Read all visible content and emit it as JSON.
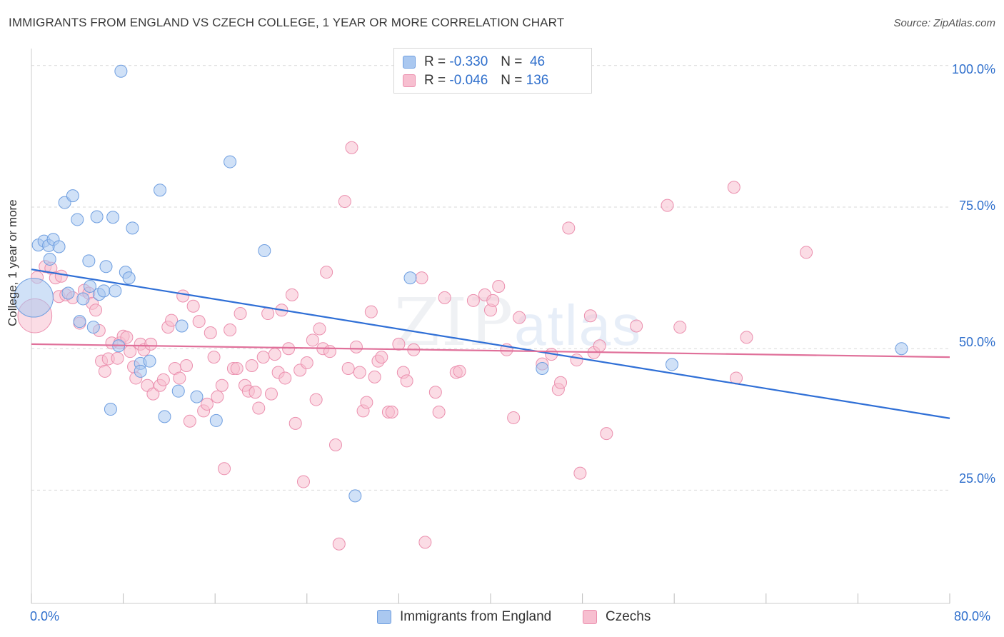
{
  "title": "IMMIGRANTS FROM ENGLAND VS CZECH COLLEGE, 1 YEAR OR MORE CORRELATION CHART",
  "source": "Source: ZipAtlas.com",
  "watermark": {
    "zip": "ZIP",
    "atlas": "atlas"
  },
  "colors": {
    "england_fill": "#aac8f0",
    "england_stroke": "#6e9ee0",
    "england_line": "#2f6fd6",
    "czech_fill": "#f7bfd0",
    "czech_stroke": "#eb8fae",
    "czech_line": "#e0709a",
    "grid": "#d9d9d9",
    "tick_text": "#2f6fcc"
  },
  "legend_stats": [
    {
      "r_label": "R =",
      "r": "-0.330",
      "n_label": "N =",
      "n": "46"
    },
    {
      "r_label": "R =",
      "r": "-0.046",
      "n_label": "N =",
      "n": "136"
    }
  ],
  "legend": {
    "england": "Immigrants from England",
    "czechs": "Czechs"
  },
  "chart_data": {
    "type": "scatter",
    "title": "IMMIGRANTS FROM ENGLAND VS CZECH COLLEGE, 1 YEAR OR MORE CORRELATION CHART",
    "xlabel": "",
    "ylabel": "College, 1 year or more",
    "xlim": [
      0,
      80
    ],
    "ylim": [
      5,
      103
    ],
    "x_tick_labels": [
      "0.0%",
      "80.0%"
    ],
    "y_ticks": [
      25,
      50,
      75,
      100
    ],
    "y_tick_labels": [
      "25.0%",
      "50.0%",
      "75.0%",
      "100.0%"
    ],
    "grid": true,
    "legend_position": "bottom",
    "series": [
      {
        "name": "Immigrants from England",
        "trend": {
          "x": [
            0,
            80
          ],
          "y": [
            64.0,
            37.7
          ]
        },
        "points": [
          [
            0.2,
            59.0,
            3.2
          ],
          [
            0.6,
            68.3,
            1
          ],
          [
            1.1,
            69.0,
            1
          ],
          [
            1.5,
            68.2,
            1
          ],
          [
            1.9,
            69.3,
            1
          ],
          [
            2.4,
            68.0,
            1
          ],
          [
            1.6,
            65.8,
            1
          ],
          [
            3.2,
            59.8,
            1
          ],
          [
            2.9,
            75.8,
            1
          ],
          [
            3.6,
            77.0,
            1
          ],
          [
            4.0,
            72.8,
            1
          ],
          [
            4.2,
            54.8,
            1
          ],
          [
            4.5,
            58.8,
            1
          ],
          [
            5.0,
            65.5,
            1
          ],
          [
            5.1,
            61.0,
            1
          ],
          [
            5.4,
            53.8,
            1
          ],
          [
            5.7,
            73.3,
            1
          ],
          [
            5.9,
            59.6,
            1
          ],
          [
            6.3,
            60.2,
            1
          ],
          [
            6.5,
            64.5,
            1
          ],
          [
            6.9,
            39.3,
            1
          ],
          [
            7.1,
            73.2,
            1
          ],
          [
            7.3,
            60.2,
            1
          ],
          [
            7.6,
            50.5,
            1
          ],
          [
            7.8,
            99.0,
            1
          ],
          [
            8.2,
            63.5,
            1
          ],
          [
            8.5,
            62.5,
            1
          ],
          [
            8.8,
            71.3,
            1
          ],
          [
            9.5,
            47.4,
            1
          ],
          [
            9.5,
            46.0,
            1
          ],
          [
            10.3,
            47.8,
            1
          ],
          [
            11.2,
            78.0,
            1
          ],
          [
            11.6,
            38.0,
            1
          ],
          [
            13.1,
            54.0,
            1
          ],
          [
            12.8,
            42.5,
            1
          ],
          [
            14.4,
            41.5,
            1
          ],
          [
            16.1,
            37.3,
            1
          ],
          [
            17.3,
            83.0,
            1
          ],
          [
            20.3,
            67.3,
            1
          ],
          [
            33.0,
            62.5,
            1
          ],
          [
            28.2,
            24.0,
            1
          ],
          [
            44.5,
            46.5,
            1
          ],
          [
            55.8,
            47.2,
            1
          ],
          [
            75.8,
            50.0,
            1
          ]
        ]
      },
      {
        "name": "Czechs",
        "trend": {
          "x": [
            0,
            80
          ],
          "y": [
            50.8,
            48.5
          ]
        },
        "points": [
          [
            0.3,
            55.8,
            2.8
          ],
          [
            0.5,
            62.6,
            1
          ],
          [
            1.2,
            64.5,
            1
          ],
          [
            1.7,
            64.2,
            1
          ],
          [
            2.1,
            62.5,
            1
          ],
          [
            2.6,
            62.8,
            1
          ],
          [
            2.4,
            59.2,
            1
          ],
          [
            3.0,
            59.5,
            1
          ],
          [
            3.6,
            59.0,
            1
          ],
          [
            4.2,
            54.5,
            1
          ],
          [
            4.6,
            60.3,
            1
          ],
          [
            5.0,
            59.8,
            1
          ],
          [
            5.3,
            58.0,
            1
          ],
          [
            5.6,
            56.8,
            1
          ],
          [
            5.9,
            53.2,
            1
          ],
          [
            6.1,
            47.8,
            1
          ],
          [
            6.4,
            46.0,
            1
          ],
          [
            6.7,
            48.2,
            1
          ],
          [
            7.0,
            51.0,
            1
          ],
          [
            7.5,
            48.3,
            1
          ],
          [
            7.7,
            51.0,
            1
          ],
          [
            8.0,
            52.2,
            1
          ],
          [
            8.3,
            52.0,
            1
          ],
          [
            8.6,
            49.5,
            1
          ],
          [
            8.9,
            46.8,
            1
          ],
          [
            9.1,
            44.8,
            1
          ],
          [
            9.5,
            50.8,
            1
          ],
          [
            9.8,
            49.8,
            1
          ],
          [
            10.1,
            43.5,
            1
          ],
          [
            10.4,
            50.8,
            1
          ],
          [
            10.6,
            42.0,
            1
          ],
          [
            11.2,
            43.5,
            1
          ],
          [
            11.5,
            44.5,
            1
          ],
          [
            11.9,
            53.8,
            1
          ],
          [
            12.2,
            55.0,
            1
          ],
          [
            12.5,
            46.5,
            1
          ],
          [
            12.9,
            44.8,
            1
          ],
          [
            13.2,
            59.3,
            1
          ],
          [
            13.5,
            47.0,
            1
          ],
          [
            13.8,
            37.2,
            1
          ],
          [
            14.1,
            57.5,
            1
          ],
          [
            14.6,
            54.8,
            1
          ],
          [
            15.0,
            39.0,
            1
          ],
          [
            15.3,
            40.2,
            1
          ],
          [
            15.6,
            52.8,
            1
          ],
          [
            15.9,
            48.5,
            1
          ],
          [
            16.2,
            41.5,
            1
          ],
          [
            16.6,
            43.5,
            1
          ],
          [
            16.8,
            28.8,
            1
          ],
          [
            17.3,
            53.3,
            1
          ],
          [
            17.6,
            46.5,
            1
          ],
          [
            17.9,
            46.5,
            1
          ],
          [
            18.2,
            56.2,
            1
          ],
          [
            18.6,
            43.5,
            1
          ],
          [
            18.9,
            42.5,
            1
          ],
          [
            19.2,
            47.0,
            1
          ],
          [
            19.5,
            42.3,
            1
          ],
          [
            19.8,
            39.5,
            1
          ],
          [
            20.2,
            48.5,
            1
          ],
          [
            20.6,
            56.2,
            1
          ],
          [
            20.9,
            42.0,
            1
          ],
          [
            21.2,
            49.0,
            1
          ],
          [
            21.5,
            45.8,
            1
          ],
          [
            21.8,
            56.8,
            1
          ],
          [
            22.1,
            44.8,
            1
          ],
          [
            22.4,
            50.0,
            1
          ],
          [
            22.7,
            59.5,
            1
          ],
          [
            23.0,
            36.8,
            1
          ],
          [
            23.4,
            46.2,
            1
          ],
          [
            23.7,
            26.5,
            1
          ],
          [
            24.0,
            47.5,
            1
          ],
          [
            24.5,
            51.5,
            1
          ],
          [
            24.8,
            41.0,
            1
          ],
          [
            25.1,
            53.5,
            1
          ],
          [
            25.4,
            50.0,
            1
          ],
          [
            25.7,
            63.5,
            1
          ],
          [
            26.0,
            49.5,
            1
          ],
          [
            26.5,
            33.0,
            1
          ],
          [
            26.8,
            15.5,
            1
          ],
          [
            27.3,
            76.0,
            1
          ],
          [
            27.6,
            46.5,
            1
          ],
          [
            27.9,
            85.5,
            1
          ],
          [
            28.3,
            50.3,
            1
          ],
          [
            28.6,
            45.8,
            1
          ],
          [
            28.9,
            39.0,
            1
          ],
          [
            29.2,
            40.5,
            1
          ],
          [
            29.6,
            56.5,
            1
          ],
          [
            29.9,
            45.0,
            1
          ],
          [
            30.2,
            47.8,
            1
          ],
          [
            30.5,
            48.5,
            1
          ],
          [
            31.1,
            38.8,
            1
          ],
          [
            31.4,
            38.8,
            1
          ],
          [
            32.0,
            50.8,
            1
          ],
          [
            32.4,
            45.8,
            1
          ],
          [
            32.7,
            44.3,
            1
          ],
          [
            33.3,
            49.8,
            1
          ],
          [
            34.0,
            62.5,
            1
          ],
          [
            34.3,
            15.8,
            1
          ],
          [
            35.2,
            42.3,
            1
          ],
          [
            35.5,
            38.8,
            1
          ],
          [
            36.0,
            59.0,
            1
          ],
          [
            37.0,
            45.8,
            1
          ],
          [
            37.3,
            46.0,
            1
          ],
          [
            38.5,
            58.5,
            1
          ],
          [
            39.5,
            59.5,
            1
          ],
          [
            40.0,
            56.8,
            1
          ],
          [
            40.2,
            58.5,
            1
          ],
          [
            40.7,
            61.0,
            1
          ],
          [
            41.4,
            49.8,
            1
          ],
          [
            42.0,
            37.8,
            1
          ],
          [
            42.5,
            55.5,
            1
          ],
          [
            44.5,
            47.3,
            1
          ],
          [
            45.3,
            49.0,
            1
          ],
          [
            45.9,
            42.8,
            1
          ],
          [
            46.1,
            44.0,
            1
          ],
          [
            46.8,
            71.3,
            1
          ],
          [
            47.5,
            48.0,
            1
          ],
          [
            47.8,
            28.0,
            1
          ],
          [
            48.7,
            55.8,
            1
          ],
          [
            49.0,
            49.3,
            1
          ],
          [
            49.5,
            50.5,
            1
          ],
          [
            50.1,
            35.0,
            1
          ],
          [
            52.7,
            54.0,
            1
          ],
          [
            55.4,
            75.3,
            1
          ],
          [
            56.5,
            53.8,
            1
          ],
          [
            61.2,
            78.5,
            1
          ],
          [
            61.4,
            44.8,
            1
          ],
          [
            62.3,
            52.0,
            1
          ],
          [
            67.5,
            67.0,
            1
          ]
        ]
      }
    ]
  }
}
